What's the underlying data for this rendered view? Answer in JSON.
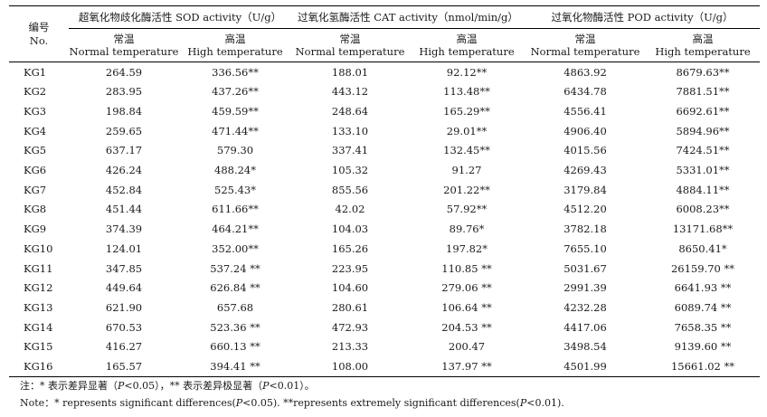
{
  "header": {
    "id_cn": "编号",
    "id_en": "No.",
    "groups": [
      {
        "cn": "超氧化物歧化酶活性",
        "en": "SOD activity（U/g）"
      },
      {
        "cn": "过氧化氢酶活性",
        "en": "CAT activity（nmol/min/g）"
      },
      {
        "cn": "过氧化物酶活性",
        "en": "POD activity（U/g）"
      }
    ],
    "sub": [
      {
        "cn": "常温",
        "en": "Normal temperature"
      },
      {
        "cn": "高温",
        "en": "High temperature"
      }
    ]
  },
  "rows": [
    [
      "KG1",
      "264.59",
      "336.56**",
      "188.01",
      "92.12**",
      "4863.92",
      "8679.63**"
    ],
    [
      "KG2",
      "283.95",
      "437.26**",
      "443.12",
      "113.48**",
      "6434.78",
      "7881.51**"
    ],
    [
      "KG3",
      "198.84",
      "459.59**",
      "248.64",
      "165.29**",
      "4556.41",
      "6692.61**"
    ],
    [
      "KG4",
      "259.65",
      "471.44**",
      "133.10",
      "29.01**",
      "4906.40",
      "5894.96**"
    ],
    [
      "KG5",
      "637.17",
      "579.30",
      "337.41",
      "132.45**",
      "4015.56",
      "7424.51**"
    ],
    [
      "KG6",
      "426.24",
      "488.24*",
      "105.32",
      "91.27",
      "4269.43",
      "5331.01**"
    ],
    [
      "KG7",
      "452.84",
      "525.43*",
      "855.56",
      "201.22**",
      "3179.84",
      "4884.11**"
    ],
    [
      "KG8",
      "451.44",
      "611.66**",
      "42.02",
      "57.92**",
      "4512.20",
      "6008.23**"
    ],
    [
      "KG9",
      "374.39",
      "464.21**",
      "104.03",
      "89.76*",
      "3782.18",
      "13171.68**"
    ],
    [
      "KG10",
      "124.01",
      "352.00**",
      "165.26",
      "197.82*",
      "7655.10",
      "8650.41*"
    ],
    [
      "KG11",
      "347.85",
      "537.24 **",
      "223.95",
      "110.85 **",
      "5031.67",
      "26159.70 **"
    ],
    [
      "KG12",
      "449.64",
      "626.84 **",
      "104.60",
      "279.06 **",
      "2991.39",
      "6641.93 **"
    ],
    [
      "KG13",
      "621.90",
      "657.68",
      "280.61",
      "106.64 **",
      "4232.28",
      "6089.74 **"
    ],
    [
      "KG14",
      "670.53",
      "523.36 **",
      "472.93",
      "204.53 **",
      "4417.06",
      "7658.35 **"
    ],
    [
      "KG15",
      "416.27",
      "660.13 **",
      "213.33",
      "200.47",
      "3498.54",
      "9139.60 **"
    ],
    [
      "KG16",
      "165.57",
      "394.41 **",
      "108.00",
      "137.97 **",
      "4501.99",
      "15661.02 **"
    ]
  ],
  "notes": {
    "cn_a": "注：* 表示差异显著（",
    "cn_p1": "P",
    "cn_b": "<0.05），** 表示差异极显著（",
    "cn_p2": "P",
    "cn_c": "<0.01）。",
    "en_a": "Note：* represents significant differences(",
    "en_p1": "P",
    "en_b": "<0.05). **represents extremely significant differences(",
    "en_p2": "P",
    "en_c": "<0.01)."
  }
}
